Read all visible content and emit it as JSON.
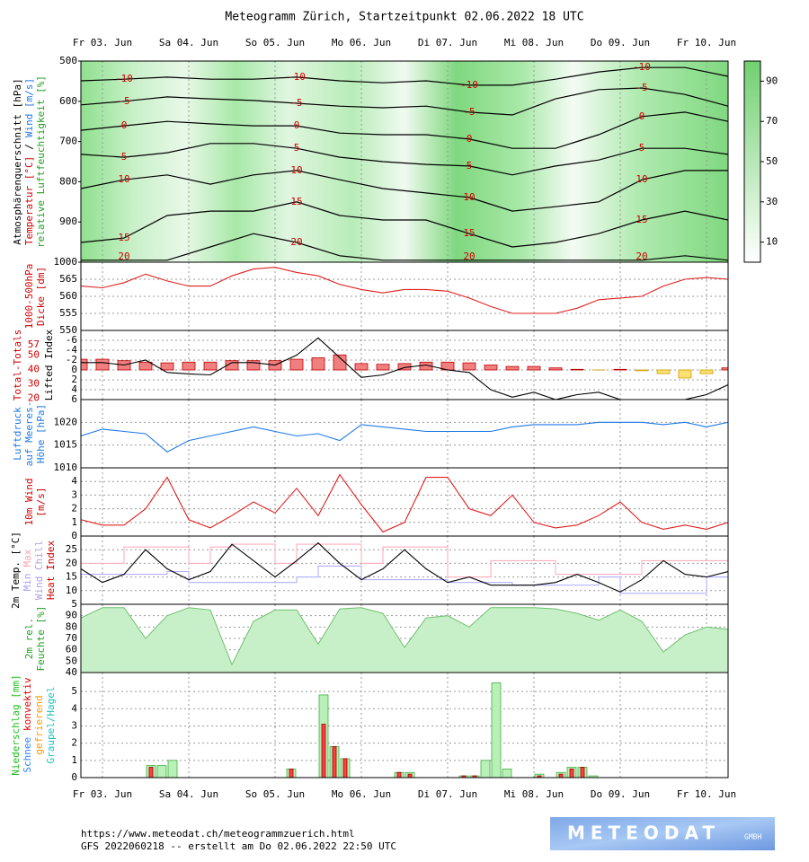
{
  "title": "Meteogramm Zürich, Startzeitpunkt 02.06.2022 18 UTC",
  "time": {
    "xlim": [
      0,
      180
    ],
    "xticks": [
      {
        "value": 6,
        "label": "Fr 03. Jun"
      },
      {
        "value": 30,
        "label": "Sa 04. Jun"
      },
      {
        "value": 54,
        "label": "So 05. Jun"
      },
      {
        "value": 78,
        "label": "Mo 06. Jun"
      },
      {
        "value": 102,
        "label": "Di 07. Jun"
      },
      {
        "value": 126,
        "label": "Mi 08. Jun"
      },
      {
        "value": 150,
        "label": "Do 09. Jun"
      },
      {
        "value": 174,
        "label": "Fr 10. Jun"
      }
    ],
    "x": [
      0,
      6,
      12,
      18,
      24,
      30,
      36,
      42,
      48,
      54,
      60,
      66,
      72,
      78,
      84,
      90,
      96,
      102,
      108,
      114,
      120,
      126,
      132,
      138,
      144,
      150,
      156,
      162,
      168,
      174,
      180
    ]
  },
  "chart_data": [
    {
      "type": "contour",
      "ylim": [
        1000,
        500
      ],
      "yticks": [
        500,
        600,
        700,
        800,
        900,
        1000
      ],
      "grid": false,
      "ylabels": [
        [
          {
            "text": "Atmosphärenquerschnitt [hPa]",
            "color": "#000000"
          }
        ],
        [
          {
            "text": "Temperatur [°C]",
            "color": "#d00000"
          },
          {
            "text": "/",
            "color": "#000000"
          },
          {
            "text": "Wind [m/s]",
            "color": "#1e78e6"
          }
        ],
        [
          {
            "text": "relative Luftfeuchtigkeit [%]",
            "color": "#20a020"
          }
        ]
      ],
      "line_color": "#000000",
      "label_color": "#d00000",
      "colorbar": {
        "ylim": [
          0,
          100
        ],
        "ticks": [
          10,
          30,
          50,
          70,
          90
        ]
      },
      "x": [
        0,
        12,
        24,
        36,
        48,
        60,
        72,
        84,
        96,
        108,
        120,
        132,
        144,
        156,
        168,
        180
      ],
      "series": [
        {
          "name": "-10",
          "values": [
            549,
            545,
            540,
            545,
            545,
            540,
            549,
            554,
            549,
            560,
            560,
            545,
            527,
            516,
            516,
            538
          ]
        },
        {
          "name": "-5",
          "values": [
            609,
            600,
            589,
            594,
            598,
            605,
            612,
            616,
            612,
            627,
            634,
            594,
            571,
            567,
            583,
            612
          ]
        },
        {
          "name": "0",
          "values": [
            672,
            661,
            650,
            656,
            661,
            661,
            679,
            683,
            683,
            694,
            717,
            717,
            683,
            638,
            627,
            650
          ]
        },
        {
          "name": "5",
          "values": [
            732,
            739,
            728,
            705,
            705,
            717,
            739,
            750,
            757,
            761,
            783,
            761,
            746,
            717,
            717,
            732
          ]
        },
        {
          "name": "10",
          "values": [
            817,
            795,
            783,
            806,
            783,
            772,
            795,
            817,
            828,
            839,
            873,
            862,
            850,
            795,
            772,
            772
          ]
        },
        {
          "name": "15",
          "values": [
            951,
            940,
            884,
            873,
            873,
            850,
            884,
            895,
            895,
            929,
            962,
            951,
            929,
            895,
            873,
            895
          ]
        },
        {
          "name": "20",
          "values": [
            995,
            995,
            995,
            962,
            929,
            951,
            984,
            995,
            995,
            995,
            995,
            995,
            995,
            995,
            984,
            995
          ]
        }
      ]
    },
    {
      "type": "line",
      "ylim": [
        550,
        570
      ],
      "yticks": [
        550,
        555,
        560,
        565
      ],
      "grid": true,
      "ylabels": [
        [
          {
            "text": "1000-500hPa",
            "color": "#d00000"
          }
        ],
        [
          {
            "text": "Dicke [dm]",
            "color": "#d00000"
          }
        ]
      ],
      "series": [
        {
          "color": "#e02020",
          "values": [
            563,
            562.5,
            564,
            566.5,
            564.5,
            563,
            563,
            566,
            568,
            568.5,
            567,
            566,
            563.5,
            562,
            561,
            562,
            562,
            561.5,
            559.5,
            557,
            555,
            555,
            555,
            556.5,
            559,
            559.5,
            560,
            563,
            565,
            565.5,
            565
          ]
        }
      ]
    },
    {
      "type": "combo",
      "ylim": [
        6,
        -8
      ],
      "yticks": [
        -6,
        -4,
        -2,
        0,
        2,
        4,
        6
      ],
      "y2lim": [
        19,
        67
      ],
      "y2ticks": [
        20,
        30,
        40,
        50,
        57
      ],
      "y2color": "#d00000",
      "grid": true,
      "ylabels": [
        [
          {
            "text": "Total-Totals",
            "color": "#d00000"
          }
        ],
        [
          {
            "text": "Lifted Index",
            "color": "#000000"
          }
        ]
      ],
      "series": [
        {
          "kind": "bar",
          "axis": "y2",
          "color": "#f08080",
          "edge": "#c00000",
          "negative_color": "#ffe070",
          "negative_edge": "#d0a000",
          "values": [
            47,
            47,
            46,
            45,
            44.5,
            45,
            45,
            46,
            46,
            46,
            47,
            48,
            50,
            44,
            43.5,
            44,
            45,
            45,
            44.5,
            43,
            42,
            42,
            41,
            40,
            39.5,
            40,
            39,
            37,
            34,
            37,
            41
          ]
        },
        {
          "kind": "line",
          "color": "#000000",
          "values": [
            -1.5,
            -1.5,
            -1,
            -2,
            0.5,
            0.8,
            1,
            -1.5,
            -1.5,
            -1,
            -3,
            -6.5,
            -2.5,
            1.5,
            1,
            -0.5,
            -1,
            0,
            0.5,
            4,
            5.5,
            4.5,
            6,
            5,
            4.5,
            6,
            6,
            6,
            6,
            5,
            3
          ]
        }
      ]
    },
    {
      "type": "line",
      "ylim": [
        1010,
        1025
      ],
      "yticks": [
        1010,
        1015,
        1020
      ],
      "grid": true,
      "ylabels": [
        [
          {
            "text": "Luftdruck",
            "color": "#1e78e6"
          }
        ],
        [
          {
            "text": "auf Meeres-",
            "color": "#1e78e6"
          }
        ],
        [
          {
            "text": "Höhe [hPa]",
            "color": "#1e78e6"
          }
        ]
      ],
      "series": [
        {
          "color": "#1e78e6",
          "values": [
            1017,
            1018.5,
            1018,
            1017.5,
            1013.5,
            1016,
            1017,
            1018,
            1019,
            1018,
            1017,
            1017.5,
            1016,
            1019.5,
            1019,
            1018.5,
            1018,
            1018,
            1018,
            1018,
            1019,
            1019.5,
            1019.5,
            1019.5,
            1020,
            1020,
            1020,
            1019.5,
            1020,
            1019,
            1020
          ]
        }
      ]
    },
    {
      "type": "line",
      "ylim": [
        0,
        5
      ],
      "yticks": [
        0,
        1,
        2,
        3,
        4
      ],
      "grid": true,
      "ylabels": [
        [
          {
            "text": "10m Wind",
            "color": "#d00000"
          }
        ],
        [
          {
            "text": "[m/s]",
            "color": "#d00000"
          }
        ]
      ],
      "series": [
        {
          "color": "#e02020",
          "values": [
            1.2,
            0.8,
            0.8,
            2,
            4.3,
            1.2,
            0.6,
            1.5,
            2.5,
            1.7,
            3.5,
            1.5,
            4.5,
            2.3,
            0.3,
            1,
            4.3,
            4.3,
            2,
            1.5,
            3,
            1,
            0.6,
            0.8,
            1.5,
            2.5,
            1,
            0.5,
            0.8,
            0.5,
            1
          ]
        }
      ]
    },
    {
      "type": "line",
      "ylim": [
        5,
        30
      ],
      "yticks": [
        5,
        10,
        15,
        20,
        25
      ],
      "grid": true,
      "ylabels": [
        [
          {
            "text": "2m Temp. [°C]",
            "color": "#000000"
          }
        ],
        [
          {
            "text": "Min",
            "color": "#a0a0ff"
          },
          {
            "text": "Max",
            "color": "#ffa0b0"
          }
        ],
        [
          {
            "text": "Wind Chill",
            "color": "#b0a0e0"
          }
        ],
        [
          {
            "text": "Heat Index",
            "color": "#d00000"
          }
        ]
      ],
      "series": [
        {
          "color": "#ffb0c0",
          "step": true,
          "values": [
            20,
            20,
            26,
            26,
            26,
            20,
            26,
            27,
            27,
            20,
            27,
            27,
            27,
            20,
            26,
            26,
            26,
            15,
            15,
            21,
            21,
            21,
            16,
            16,
            16,
            16,
            21,
            21,
            21,
            21,
            21
          ]
        },
        {
          "color": "#b0b0ff",
          "step": true,
          "values": [
            16,
            16,
            16,
            16,
            17,
            13,
            13,
            13,
            13,
            13,
            15,
            19,
            19,
            14,
            14,
            14,
            14,
            13,
            13,
            13,
            12,
            12,
            12,
            12,
            15,
            9,
            9,
            9,
            9,
            15,
            15
          ]
        },
        {
          "color": "#000000",
          "values": [
            18,
            13,
            16,
            25,
            18,
            14,
            17,
            27,
            21,
            15,
            21,
            27.5,
            20,
            14,
            18,
            25,
            18,
            13,
            15,
            12,
            12,
            12,
            13,
            16,
            13,
            9.5,
            14,
            21,
            16,
            15,
            17
          ]
        }
      ]
    },
    {
      "type": "area",
      "ylim": [
        40,
        100
      ],
      "yticks": [
        40,
        50,
        60,
        70,
        80,
        90
      ],
      "grid": true,
      "ylabels": [
        [
          {
            "text": "2m rel.",
            "color": "#20a020"
          }
        ],
        [
          {
            "text": "Feuchte [%]",
            "color": "#20a020"
          }
        ]
      ],
      "series": [
        {
          "color": "#c8f0c8",
          "edge": "#70c070",
          "values": [
            88,
            97,
            97,
            70,
            90,
            97,
            95,
            47,
            85,
            95,
            95,
            65,
            96,
            97,
            92,
            62,
            88,
            90,
            80,
            97,
            97,
            97,
            96,
            92,
            86,
            95,
            85,
            58,
            73,
            80,
            78
          ]
        }
      ]
    },
    {
      "type": "bar",
      "ylim": [
        0,
        6.1
      ],
      "yticks": [
        0,
        1,
        2,
        3,
        4,
        5
      ],
      "grid": true,
      "ylabels": [
        [
          {
            "text": "Niederschlag [mm]",
            "color": "#20c020"
          }
        ],
        [
          {
            "text": "Schnee",
            "color": "#3080ff"
          },
          {
            "text": "konvektiv",
            "color": "#e00000"
          }
        ],
        [
          {
            "text": "gefrierend",
            "color": "#ff9900"
          }
        ],
        [
          {
            "text": "Graupel/Hagel",
            "color": "#20c0c0"
          }
        ]
      ],
      "x": [
        19.5,
        22.5,
        25.5,
        58.5,
        67.5,
        70.5,
        73.5,
        88.5,
        91.5,
        106.5,
        109.5,
        112.5,
        115.5,
        118.5,
        127.5,
        133.5,
        136.5,
        139.5,
        142.5
      ],
      "series": [
        {
          "color": "#b8f0b8",
          "edge": "#40b040",
          "values": [
            0.7,
            0.7,
            1.0,
            0.5,
            4.8,
            1.8,
            1.1,
            0.3,
            0.3,
            0.1,
            0.1,
            1.0,
            5.5,
            0.5,
            0.2,
            0.3,
            0.6,
            0.6,
            0.1
          ]
        },
        {
          "color": "#ff4040",
          "edge": "#a00000",
          "values": [
            0.6,
            0,
            0,
            0.5,
            3.1,
            1.8,
            1.1,
            0.3,
            0.2,
            0.1,
            0.1,
            0,
            0,
            0,
            0.1,
            0.2,
            0.5,
            0.6,
            0
          ]
        }
      ]
    }
  ],
  "footer": {
    "url": "https://www.meteodat.ch/meteogrammzuerich.html",
    "run": "GFS 2022060218 -- erstellt am Do 02.06.2022 22:50 UTC"
  },
  "logo": {
    "name": "METEODAT",
    "suffix": "GMBH"
  }
}
